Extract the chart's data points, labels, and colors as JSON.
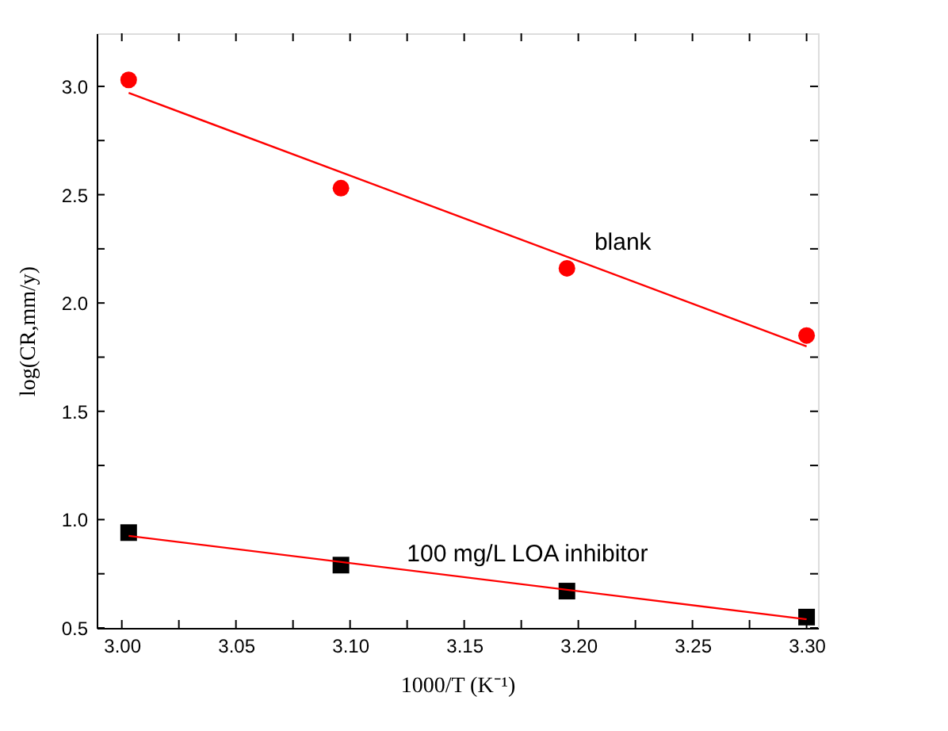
{
  "chart_data": {
    "type": "scatter",
    "xlabel": "1000/T (K⁻¹)",
    "ylabel": "log(CR,mm/y)",
    "series": [
      {
        "color": "#ff0000",
        "marker": "circle",
        "x": [
          3.003,
          3.096,
          3.195,
          3.3
        ],
        "values": [
          3.03,
          2.53,
          2.16,
          1.85
        ]
      },
      {
        "type": "line",
        "color": "#ff0000",
        "marker": "none",
        "x": [
          3.003,
          3.3
        ],
        "values": [
          2.97,
          1.8
        ]
      },
      {
        "color": "#000000",
        "marker": "square",
        "x": [
          3.003,
          3.096,
          3.195,
          3.3
        ],
        "values": [
          0.94,
          0.79,
          0.67,
          0.55
        ]
      },
      {
        "type": "line",
        "color": "#ff0000",
        "marker": "none",
        "x": [
          3.003,
          3.3
        ],
        "values": [
          0.925,
          0.54
        ]
      }
    ],
    "xlim": [
      2.989,
      3.305
    ],
    "ylim": [
      0.5,
      3.245
    ],
    "xticks": [
      {
        "value": 3.0,
        "label": "3.00"
      },
      {
        "value": 3.025,
        "label": null
      },
      {
        "value": 3.05,
        "label": "3.05"
      },
      {
        "value": 3.075,
        "label": null
      },
      {
        "value": 3.1,
        "label": "3.10"
      },
      {
        "value": 3.125,
        "label": null
      },
      {
        "value": 3.15,
        "label": "3.15"
      },
      {
        "value": 3.175,
        "label": null
      },
      {
        "value": 3.2,
        "label": "3.20"
      },
      {
        "value": 3.225,
        "label": null
      },
      {
        "value": 3.25,
        "label": "3.25"
      },
      {
        "value": 3.275,
        "label": null
      },
      {
        "value": 3.3,
        "label": "3.30"
      }
    ],
    "yticks": [
      {
        "value": 0.5,
        "label": "0.5"
      },
      {
        "value": 0.75,
        "label": null
      },
      {
        "value": 1.0,
        "label": "1.0"
      },
      {
        "value": 1.25,
        "label": null
      },
      {
        "value": 1.5,
        "label": "1.5"
      },
      {
        "value": 1.75,
        "label": null
      },
      {
        "value": 2.0,
        "label": "2.0"
      },
      {
        "value": 2.25,
        "label": null
      },
      {
        "value": 2.5,
        "label": "2.5"
      },
      {
        "value": 2.75,
        "label": null
      },
      {
        "value": 3.0,
        "label": "3.0"
      }
    ],
    "annotations": [
      "blank",
      "100 mg/L LOA inhibitor"
    ],
    "grid": false
  }
}
